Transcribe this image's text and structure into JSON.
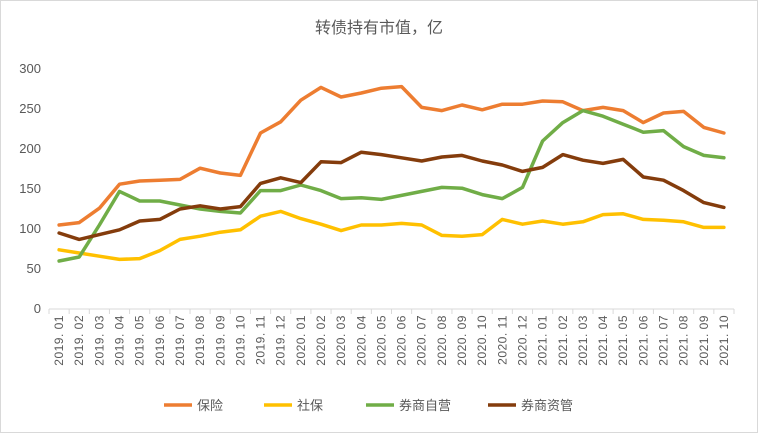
{
  "chart_data": {
    "type": "line",
    "title": "转债持有市值，亿",
    "xlabel": "",
    "ylabel": "",
    "ylim": [
      0,
      300
    ],
    "yticks": [
      "0",
      "50",
      "100",
      "150",
      "200",
      "250",
      "300"
    ],
    "grid": false,
    "legend": "bottom",
    "categories": [
      "2019.01",
      "2019.02",
      "2019.03",
      "2019.04",
      "2019.05",
      "2019.06",
      "2019.07",
      "2019.08",
      "2019.09",
      "2019.10",
      "2019.11",
      "2019.12",
      "2020.01",
      "2020.02",
      "2020.03",
      "2020.04",
      "2020.05",
      "2020.06",
      "2020.07",
      "2020.08",
      "2020.09",
      "2020.10",
      "2020.11",
      "2020.12",
      "2021.01",
      "2021.02",
      "2021.03",
      "2021.04",
      "2021.05",
      "2021.06",
      "2021.07",
      "2021.08",
      "2021.09",
      "2021.10"
    ],
    "x_display": [
      "2019. 01",
      "2019. 02",
      "2019. 03",
      "2019. 04",
      "2019. 05",
      "2019. 06",
      "2019. 07",
      "2019. 08",
      "2019. 09",
      "2019. 10",
      "2019. 11",
      "2019. 12",
      "2020. 01",
      "2020. 02",
      "2020. 03",
      "2020. 04",
      "2020. 05",
      "2020. 06",
      "2020. 07",
      "2020. 08",
      "2020. 09",
      "2020. 10",
      "2020. 11",
      "2020. 12",
      "2021. 01",
      "2021. 02",
      "2021. 03",
      "2021. 04",
      "2021. 05",
      "2021. 06",
      "2021. 07",
      "2021. 08",
      "2021. 09",
      "2021. 10"
    ],
    "series": [
      {
        "name": "保险",
        "color": "#ED7D31",
        "values": [
          105,
          108,
          126,
          156,
          160,
          161,
          162,
          176,
          170,
          167,
          220,
          234,
          261,
          277,
          265,
          270,
          276,
          278,
          252,
          248,
          255,
          249,
          256,
          256,
          260,
          259,
          248,
          252,
          248,
          233,
          245,
          247,
          227,
          220
        ]
      },
      {
        "name": "社保",
        "color": "#FFC000",
        "values": [
          74,
          70,
          66,
          62,
          63,
          73,
          87,
          91,
          96,
          99,
          116,
          122,
          113,
          106,
          98,
          105,
          105,
          107,
          105,
          92,
          91,
          93,
          112,
          106,
          110,
          106,
          109,
          118,
          119,
          112,
          111,
          109,
          102,
          102
        ]
      },
      {
        "name": "券商自营",
        "color": "#70AD47",
        "values": [
          60,
          65,
          105,
          147,
          135,
          135,
          130,
          125,
          122,
          120,
          148,
          148,
          155,
          148,
          138,
          139,
          137,
          142,
          147,
          152,
          151,
          143,
          138,
          152,
          210,
          233,
          248,
          241,
          231,
          221,
          223,
          203,
          192,
          189
        ]
      },
      {
        "name": "券商资管",
        "color": "#843C0C",
        "values": [
          95,
          87,
          93,
          99,
          110,
          112,
          125,
          129,
          125,
          128,
          157,
          164,
          158,
          184,
          183,
          196,
          193,
          189,
          185,
          190,
          192,
          185,
          180,
          172,
          177,
          193,
          186,
          182,
          187,
          165,
          161,
          148,
          133,
          127
        ]
      }
    ]
  }
}
